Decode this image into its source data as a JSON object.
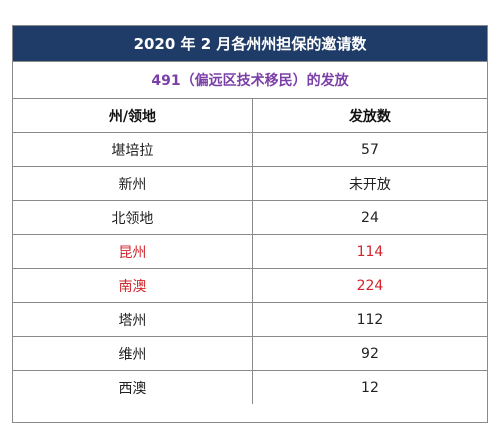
{
  "header": {
    "title": "2020 年 2 月各州州担保的邀请数",
    "subtitle": "491（偏远区技术移民）的发放"
  },
  "table": {
    "columns": [
      "州/领地",
      "发放数"
    ],
    "rows": [
      {
        "state": "堪培拉",
        "count": "57",
        "highlight": false
      },
      {
        "state": "新州",
        "count": "未开放",
        "highlight": false
      },
      {
        "state": "北领地",
        "count": "24",
        "highlight": false
      },
      {
        "state": "昆州",
        "count": "114",
        "highlight": true
      },
      {
        "state": "南澳",
        "count": "224",
        "highlight": true
      },
      {
        "state": "塔州",
        "count": "112",
        "highlight": false
      },
      {
        "state": "维州",
        "count": "92",
        "highlight": false
      },
      {
        "state": "西澳",
        "count": "12",
        "highlight": false
      }
    ]
  },
  "colors": {
    "title_bg": "#1f3b68",
    "subtitle_text": "#7b3fa8",
    "highlight_text": "#d0262c"
  }
}
